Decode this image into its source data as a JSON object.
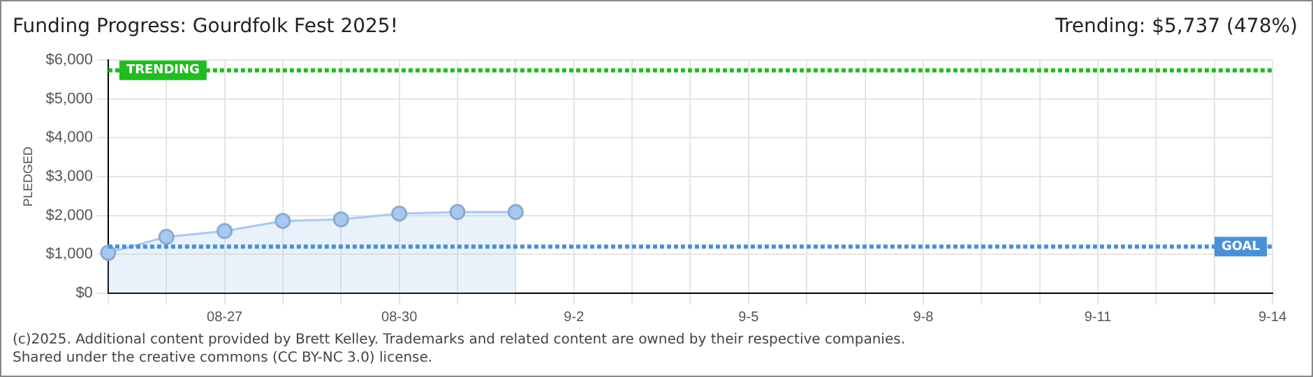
{
  "chart_data": {
    "type": "area",
    "title": "Funding Progress: Gourdfolk Fest 2025!",
    "ylabel": "PLEDGED",
    "annotations": [
      "Trending: $5,737 (478%)",
      "(c)2025. Additional content provided by Brett Kelley. Trademarks and related content are owned by their respective companies.",
      "Shared under the creative commons (CC BY-NC 3.0) license."
    ],
    "categories": [
      null,
      null,
      "08-27",
      null,
      null,
      "08-30",
      null,
      null,
      "9-2",
      null,
      null,
      "9-5",
      null,
      null,
      "9-8",
      null,
      null,
      "9-11",
      null,
      null,
      "9-14"
    ],
    "series": [
      {
        "color": "#a8c8f0",
        "values": [
          1040,
          1450,
          1600,
          1860,
          1900,
          2050,
          2090,
          2090,
          null,
          null,
          null,
          null,
          null,
          null,
          null,
          null,
          null,
          null,
          null,
          null,
          null
        ]
      }
    ],
    "ylim": [
      0,
      6000
    ],
    "yticks": [
      {
        "value": 0,
        "label": "$0"
      },
      {
        "value": 1000,
        "label": "$1,000"
      },
      {
        "value": 2000,
        "label": "$2,000"
      },
      {
        "value": 3000,
        "label": "$3,000"
      },
      {
        "value": 4000,
        "label": "$4,000"
      },
      {
        "value": 5000,
        "label": "$5,000"
      },
      {
        "value": 6000,
        "label": "$6,000"
      }
    ],
    "ref_lines": [
      {
        "axis": "y",
        "value": 5737,
        "label": "TRENDING",
        "color": "#22bb22",
        "line_style": "dotted"
      },
      {
        "axis": "y",
        "value": 1200,
        "label": "GOAL",
        "color": "#4a90d9",
        "line_style": "dotted"
      }
    ],
    "grid": true,
    "marker": "circle",
    "legend": false
  }
}
